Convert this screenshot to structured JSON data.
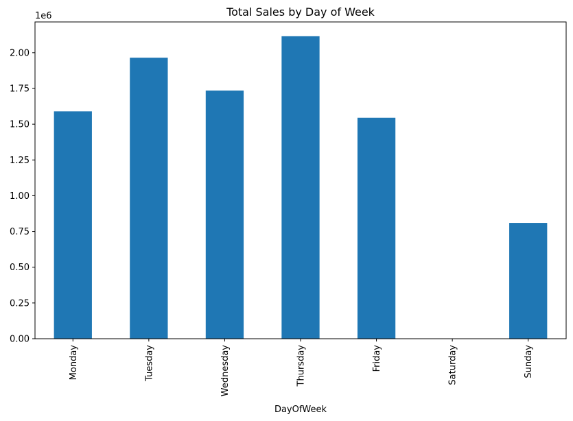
{
  "chart_data": {
    "type": "bar",
    "title": "Total Sales by Day of Week",
    "xlabel": "DayOfWeek",
    "ylabel": "",
    "y_offset_label": "1e6",
    "categories": [
      "Monday",
      "Tuesday",
      "Wednesday",
      "Thursday",
      "Friday",
      "Saturday",
      "Sunday"
    ],
    "values": [
      1.59,
      1.965,
      1.735,
      2.115,
      1.545,
      0,
      0.81
    ],
    "ylim": [
      0,
      2.215
    ],
    "yticks": [
      0.0,
      0.25,
      0.5,
      0.75,
      1.0,
      1.25,
      1.5,
      1.75,
      2.0
    ],
    "ytick_labels": [
      "0.00",
      "0.25",
      "0.50",
      "0.75",
      "1.00",
      "1.25",
      "1.50",
      "1.75",
      "2.00"
    ],
    "bar_color": "#1f77b4",
    "grid": false,
    "legend": "none"
  }
}
